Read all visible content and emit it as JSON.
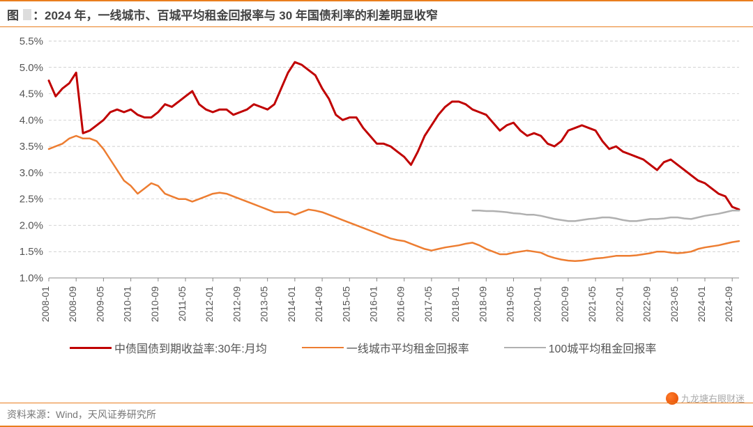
{
  "title": {
    "prefix": "图",
    "suffix": "：2024 年，一线城市、百城平均租金回报率与 30 年国债利率的利差明显收窄"
  },
  "footer": "资料来源：Wind，天风证券研究所",
  "watermark": "九龙塘右眼财迷",
  "chart": {
    "type": "line",
    "background_color": "#ffffff",
    "grid_color": "#bfbfbf",
    "axis_color": "#888888",
    "ylim": [
      1.0,
      5.5
    ],
    "ytick_step": 0.5,
    "y_ticks": [
      "1.0%",
      "1.5%",
      "2.0%",
      "2.5%",
      "3.0%",
      "3.5%",
      "4.0%",
      "4.5%",
      "5.0%",
      "5.5%"
    ],
    "x_labels": [
      "2008-01",
      "2008-09",
      "2009-05",
      "2010-01",
      "2010-09",
      "2011-05",
      "2012-01",
      "2012-09",
      "2013-05",
      "2014-01",
      "2014-09",
      "2015-05",
      "2016-01",
      "2016-09",
      "2017-05",
      "2018-01",
      "2018-09",
      "2019-05",
      "2020-01",
      "2020-09",
      "2021-05",
      "2022-01",
      "2022-09",
      "2023-05",
      "2024-01",
      "2024-09"
    ],
    "time_index": [
      "2008-01",
      "2008-03",
      "2008-05",
      "2008-07",
      "2008-09",
      "2008-11",
      "2009-01",
      "2009-03",
      "2009-05",
      "2009-07",
      "2009-09",
      "2009-11",
      "2010-01",
      "2010-03",
      "2010-05",
      "2010-07",
      "2010-09",
      "2010-11",
      "2011-01",
      "2011-03",
      "2011-05",
      "2011-07",
      "2011-09",
      "2011-11",
      "2012-01",
      "2012-03",
      "2012-05",
      "2012-07",
      "2012-09",
      "2012-11",
      "2013-01",
      "2013-03",
      "2013-05",
      "2013-07",
      "2013-09",
      "2013-11",
      "2014-01",
      "2014-03",
      "2014-05",
      "2014-07",
      "2014-09",
      "2014-11",
      "2015-01",
      "2015-03",
      "2015-05",
      "2015-07",
      "2015-09",
      "2015-11",
      "2016-01",
      "2016-03",
      "2016-05",
      "2016-07",
      "2016-09",
      "2016-11",
      "2017-01",
      "2017-03",
      "2017-05",
      "2017-07",
      "2017-09",
      "2017-11",
      "2018-01",
      "2018-03",
      "2018-05",
      "2018-07",
      "2018-09",
      "2018-11",
      "2019-01",
      "2019-03",
      "2019-05",
      "2019-07",
      "2019-09",
      "2019-11",
      "2020-01",
      "2020-03",
      "2020-05",
      "2020-07",
      "2020-09",
      "2020-11",
      "2021-01",
      "2021-03",
      "2021-05",
      "2021-07",
      "2021-09",
      "2021-11",
      "2022-01",
      "2022-03",
      "2022-05",
      "2022-07",
      "2022-09",
      "2022-11",
      "2023-01",
      "2023-03",
      "2023-05",
      "2023-07",
      "2023-09",
      "2023-11",
      "2024-01",
      "2024-03",
      "2024-05",
      "2024-07",
      "2024-09",
      "2024-11"
    ],
    "series": [
      {
        "name": "中债国债到期收益率:30年:月均",
        "color": "#c00000",
        "width": 3,
        "data": [
          4.75,
          4.45,
          4.6,
          4.7,
          4.9,
          3.75,
          3.8,
          3.9,
          4.0,
          4.15,
          4.2,
          4.15,
          4.2,
          4.1,
          4.05,
          4.05,
          4.15,
          4.3,
          4.25,
          4.35,
          4.45,
          4.55,
          4.3,
          4.2,
          4.15,
          4.2,
          4.2,
          4.1,
          4.15,
          4.2,
          4.3,
          4.25,
          4.2,
          4.3,
          4.6,
          4.9,
          5.1,
          5.05,
          4.95,
          4.85,
          4.6,
          4.4,
          4.1,
          4.0,
          4.05,
          4.05,
          3.85,
          3.7,
          3.55,
          3.55,
          3.5,
          3.4,
          3.3,
          3.15,
          3.4,
          3.7,
          3.9,
          4.1,
          4.25,
          4.35,
          4.35,
          4.3,
          4.2,
          4.15,
          4.1,
          3.95,
          3.8,
          3.9,
          3.95,
          3.8,
          3.7,
          3.75,
          3.7,
          3.55,
          3.5,
          3.6,
          3.8,
          3.85,
          3.9,
          3.85,
          3.8,
          3.6,
          3.45,
          3.5,
          3.4,
          3.35,
          3.3,
          3.25,
          3.15,
          3.05,
          3.2,
          3.25,
          3.15,
          3.05,
          2.95,
          2.85,
          2.8,
          2.7,
          2.6,
          2.55,
          2.35,
          2.3
        ]
      },
      {
        "name": "一线城市平均租金回报率",
        "color": "#ed7d31",
        "width": 2.5,
        "data": [
          3.45,
          3.5,
          3.55,
          3.65,
          3.7,
          3.65,
          3.65,
          3.6,
          3.45,
          3.25,
          3.05,
          2.85,
          2.75,
          2.6,
          2.7,
          2.8,
          2.75,
          2.6,
          2.55,
          2.5,
          2.5,
          2.45,
          2.5,
          2.55,
          2.6,
          2.62,
          2.6,
          2.55,
          2.5,
          2.45,
          2.4,
          2.35,
          2.3,
          2.25,
          2.25,
          2.25,
          2.2,
          2.25,
          2.3,
          2.28,
          2.25,
          2.2,
          2.15,
          2.1,
          2.05,
          2.0,
          1.95,
          1.9,
          1.85,
          1.8,
          1.75,
          1.72,
          1.7,
          1.65,
          1.6,
          1.55,
          1.52,
          1.55,
          1.58,
          1.6,
          1.62,
          1.65,
          1.67,
          1.62,
          1.55,
          1.5,
          1.45,
          1.45,
          1.48,
          1.5,
          1.52,
          1.5,
          1.48,
          1.42,
          1.38,
          1.35,
          1.33,
          1.32,
          1.33,
          1.35,
          1.37,
          1.38,
          1.4,
          1.42,
          1.42,
          1.42,
          1.43,
          1.45,
          1.47,
          1.5,
          1.5,
          1.48,
          1.47,
          1.48,
          1.5,
          1.55,
          1.58,
          1.6,
          1.62,
          1.65,
          1.68,
          1.7
        ]
      },
      {
        "name": "100城平均租金回报率",
        "color": "#b0b0b0",
        "width": 2.5,
        "start_index": 62,
        "data": [
          2.28,
          2.28,
          2.27,
          2.27,
          2.26,
          2.25,
          2.23,
          2.22,
          2.2,
          2.2,
          2.18,
          2.15,
          2.12,
          2.1,
          2.08,
          2.08,
          2.1,
          2.12,
          2.13,
          2.15,
          2.15,
          2.13,
          2.1,
          2.08,
          2.08,
          2.1,
          2.12,
          2.12,
          2.13,
          2.15,
          2.15,
          2.13,
          2.12,
          2.15,
          2.18,
          2.2,
          2.22,
          2.25,
          2.28,
          2.28
        ]
      }
    ]
  }
}
